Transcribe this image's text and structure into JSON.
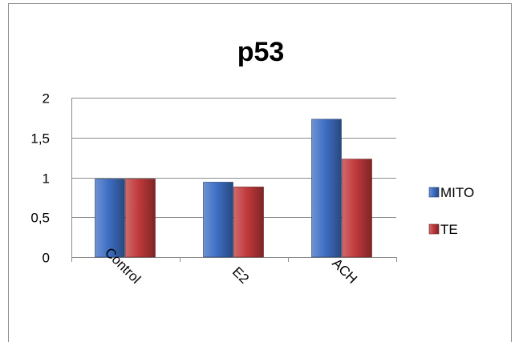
{
  "chart_data": {
    "type": "bar",
    "title": "p53",
    "categories": [
      "Control",
      "E2",
      "ACH"
    ],
    "series": [
      {
        "name": "MITO",
        "values": [
          0.98,
          0.94,
          1.73
        ],
        "color": "#3e6fc4"
      },
      {
        "name": "TE",
        "values": [
          0.98,
          0.88,
          1.23
        ],
        "color": "#c0393b"
      }
    ],
    "ylim": [
      0,
      2
    ],
    "y_ticks": [
      "0",
      "0,5",
      "1",
      "1,5",
      "2"
    ],
    "grid": true,
    "legend_position": "right"
  }
}
